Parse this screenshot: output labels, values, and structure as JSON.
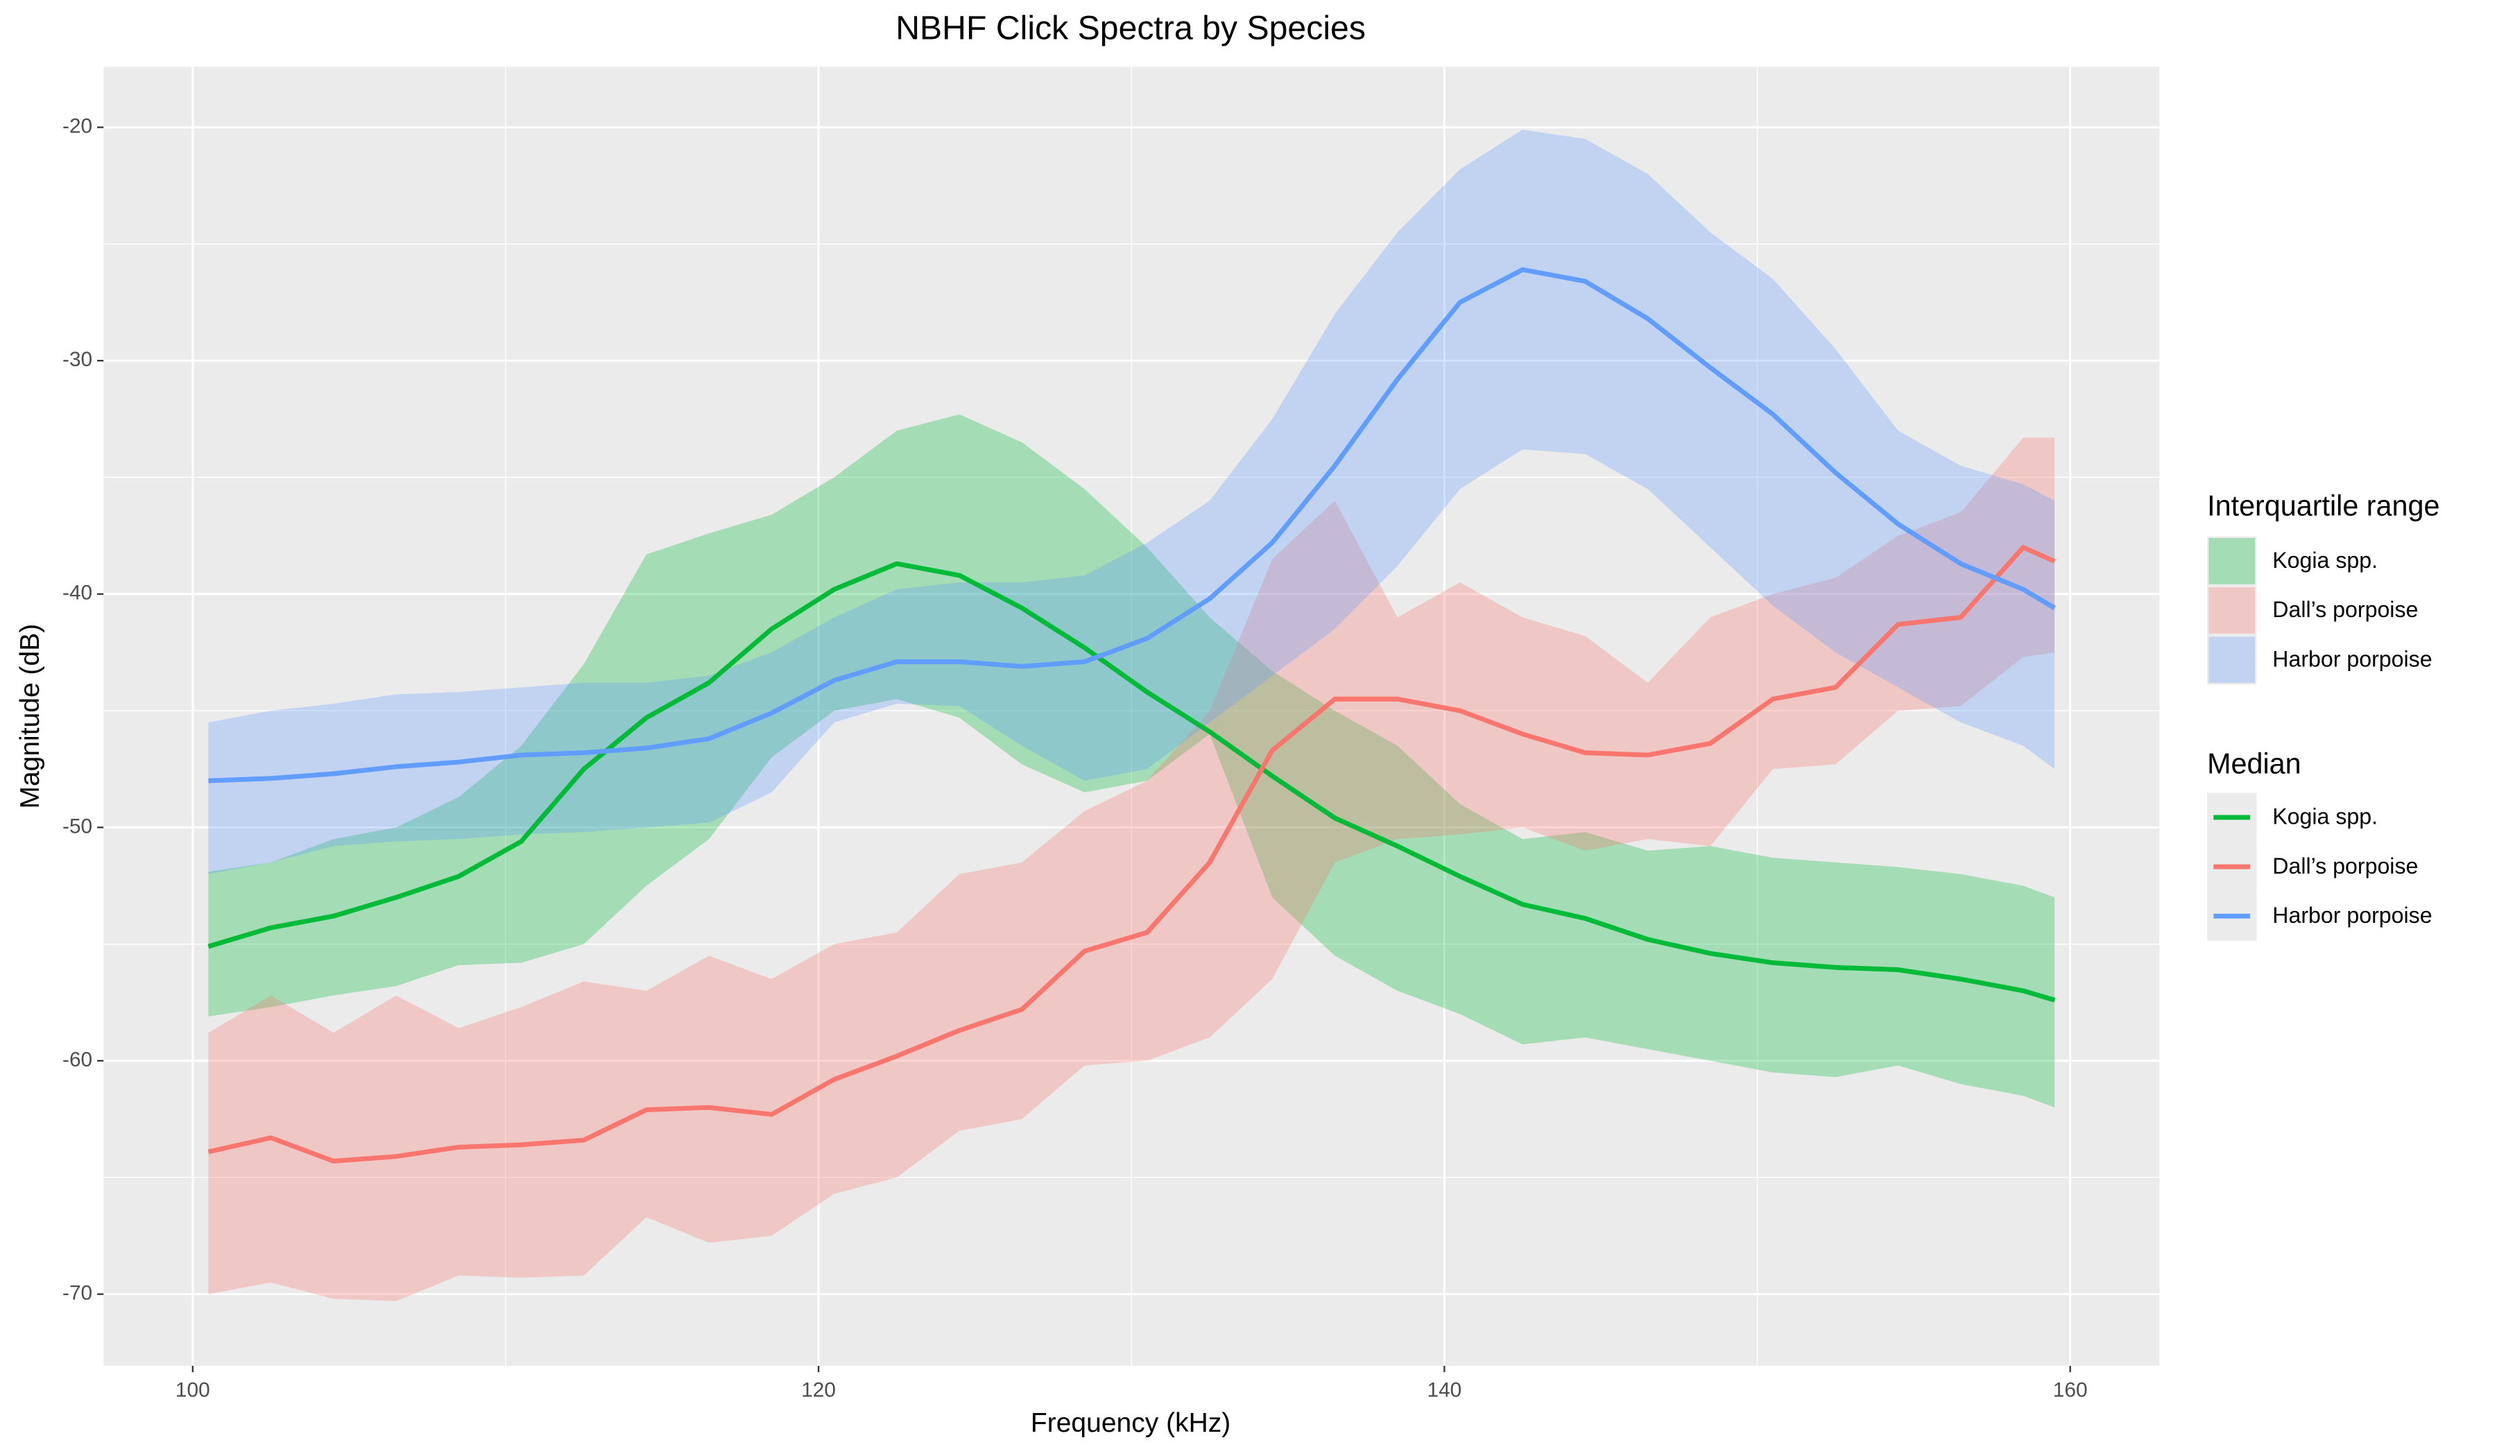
{
  "chart_data": {
    "type": "line",
    "title": "NBHF Click Spectra by Species",
    "x_label": "Frequency (kHz)",
    "y_label": "Magnitude (dB)",
    "xlim": [
      97.15,
      162.85
    ],
    "ylim": [
      -73.07,
      -17.41
    ],
    "xticks": [
      100,
      120,
      140,
      160
    ],
    "yticks": [
      -20,
      -30,
      -40,
      -50,
      -60,
      -70
    ],
    "grid": true,
    "ribbon_legend_title": "Interquartile range",
    "line_legend_title": "Median",
    "x": [
      100.5,
      102.5,
      104.5,
      106.5,
      108.5,
      110.5,
      112.5,
      114.5,
      116.5,
      118.5,
      120.5,
      122.5,
      124.5,
      126.5,
      128.5,
      130.5,
      132.5,
      134.5,
      136.5,
      138.5,
      140.5,
      142.5,
      144.5,
      146.5,
      148.5,
      150.5,
      152.5,
      154.5,
      156.5,
      158.5,
      159.5
    ],
    "series": [
      {
        "name": "Kogia spp.",
        "color": "#00BA38",
        "values": [
          -55.1,
          -54.3,
          -53.8,
          -53.0,
          -52.1,
          -50.6,
          -47.5,
          -45.3,
          -43.8,
          -41.5,
          -39.8,
          -38.7,
          -39.2,
          -40.6,
          -42.3,
          -44.2,
          -45.9,
          -47.8,
          -49.6,
          -50.8,
          -52.1,
          -53.3,
          -53.9,
          -54.8,
          -55.4,
          -55.8,
          -56.0,
          -56.1,
          -56.5,
          -57.0,
          -57.4
        ],
        "lower": [
          -58.1,
          -57.7,
          -57.2,
          -56.8,
          -55.9,
          -55.8,
          -55.0,
          -52.5,
          -50.5,
          -47.0,
          -45.0,
          -44.5,
          -45.3,
          -47.3,
          -48.5,
          -48.0,
          -46.0,
          -53.0,
          -55.5,
          -57.0,
          -58.0,
          -59.3,
          -59.0,
          -59.5,
          -60.0,
          -60.5,
          -60.7,
          -60.2,
          -61.0,
          -61.5,
          -62.0
        ],
        "upper": [
          -51.9,
          -51.5,
          -50.5,
          -50.0,
          -48.7,
          -46.5,
          -43.0,
          -38.3,
          -37.4,
          -36.6,
          -35.0,
          -33.0,
          -32.3,
          -33.5,
          -35.5,
          -38.0,
          -41.0,
          -43.3,
          -45.0,
          -46.5,
          -49.0,
          -50.5,
          -50.2,
          -51.0,
          -50.8,
          -51.3,
          -51.5,
          -51.7,
          -52.0,
          -52.5,
          -53.0
        ]
      },
      {
        "name": "Dall’s porpoise",
        "color": "#F8766D",
        "values": [
          -63.9,
          -63.3,
          -64.3,
          -64.1,
          -63.7,
          -63.6,
          -63.4,
          -62.1,
          -62.0,
          -62.3,
          -60.8,
          -59.8,
          -58.7,
          -57.8,
          -55.3,
          -54.5,
          -51.5,
          -46.7,
          -44.5,
          -44.5,
          -45.0,
          -46.0,
          -46.8,
          -46.9,
          -46.4,
          -44.5,
          -44.0,
          -41.3,
          -41.0,
          -38.0,
          -38.6
        ],
        "lower": [
          -70.0,
          -69.5,
          -70.2,
          -70.3,
          -69.2,
          -69.3,
          -69.2,
          -66.7,
          -67.8,
          -67.5,
          -65.7,
          -65.0,
          -63.0,
          -62.5,
          -60.2,
          -60.0,
          -59.0,
          -56.5,
          -51.5,
          -50.5,
          -50.3,
          -50.0,
          -51.0,
          -50.5,
          -50.8,
          -47.5,
          -47.3,
          -45.0,
          -44.8,
          -42.7,
          -42.5
        ],
        "upper": [
          -58.8,
          -57.2,
          -58.8,
          -57.2,
          -58.6,
          -57.7,
          -56.6,
          -57.0,
          -55.5,
          -56.5,
          -55.0,
          -54.5,
          -52.0,
          -51.5,
          -49.3,
          -48.0,
          -45.0,
          -38.5,
          -36.0,
          -41.0,
          -39.5,
          -41.0,
          -41.8,
          -43.8,
          -41.0,
          -40.0,
          -39.3,
          -37.5,
          -36.5,
          -33.3,
          -33.3
        ]
      },
      {
        "name": "Harbor porpoise",
        "color": "#619CFF",
        "values": [
          -48.0,
          -47.9,
          -47.7,
          -47.4,
          -47.2,
          -46.9,
          -46.8,
          -46.6,
          -46.2,
          -45.1,
          -43.7,
          -42.9,
          -42.9,
          -43.1,
          -42.9,
          -41.9,
          -40.2,
          -37.8,
          -34.5,
          -30.8,
          -27.5,
          -26.1,
          -26.6,
          -28.2,
          -30.3,
          -32.3,
          -34.8,
          -37.0,
          -38.7,
          -39.8,
          -40.6
        ],
        "lower": [
          -52.0,
          -51.5,
          -50.8,
          -50.6,
          -50.5,
          -50.3,
          -50.2,
          -50.0,
          -49.8,
          -48.5,
          -45.5,
          -44.7,
          -44.8,
          -46.5,
          -48.0,
          -47.5,
          -45.5,
          -43.5,
          -41.5,
          -38.8,
          -35.5,
          -33.8,
          -34.0,
          -35.5,
          -38.0,
          -40.5,
          -42.5,
          -44.0,
          -45.5,
          -46.5,
          -47.5
        ],
        "upper": [
          -45.5,
          -45.0,
          -44.7,
          -44.3,
          -44.2,
          -44.0,
          -43.8,
          -43.8,
          -43.5,
          -42.5,
          -41.0,
          -39.8,
          -39.5,
          -39.5,
          -39.2,
          -37.8,
          -36.0,
          -32.5,
          -28.0,
          -24.5,
          -21.8,
          -20.1,
          -20.5,
          -22.0,
          -24.5,
          -26.5,
          -29.5,
          -33.0,
          -34.5,
          -35.3,
          -36.0
        ]
      }
    ]
  }
}
